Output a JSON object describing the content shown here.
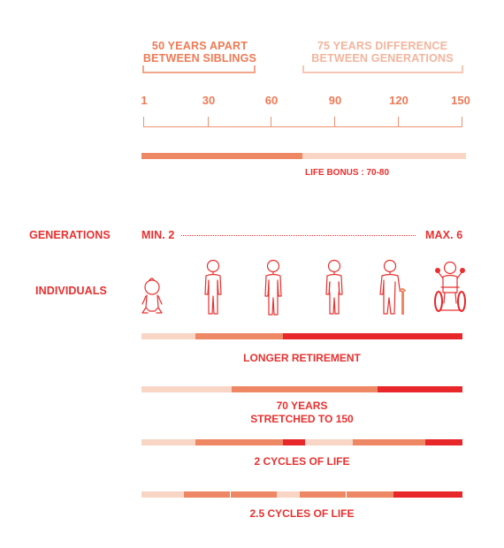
{
  "header": {
    "siblings_line1": "50 YEARS APART",
    "siblings_line2": "BETWEEN SIBLINGS",
    "generations_line1": "75 YEARS DIFFERENCE",
    "generations_line2": "BETWEEN GENERATIONS"
  },
  "timeline": {
    "ticks": [
      "1",
      "30",
      "60",
      "90",
      "120",
      "150"
    ],
    "life_bonus": "LIFE BONUS : 70-80"
  },
  "rows": {
    "generations_label": "GENERATIONS",
    "generations_min": "MIN. 2",
    "generations_max": "MAX. 6",
    "individuals_label": "INDIVIDUALS"
  },
  "icons": [
    "baby-icon",
    "child-icon",
    "adult-icon",
    "middle-aged-icon",
    "elder-with-cane-icon",
    "wheelchair-elder-icon"
  ],
  "scenarios": [
    {
      "caption": "LONGER RETIREMENT"
    },
    {
      "caption_line1": "70 YEARS",
      "caption_line2": "STRETCHED TO 150"
    },
    {
      "caption": "2 CYCLES OF LIFE"
    },
    {
      "caption": "2.5 CYCLES OF LIFE"
    }
  ],
  "colors": {
    "light": "#f9d5c6",
    "medium": "#ee8763",
    "strong": "#e8272b",
    "accent": "#ee7a55"
  }
}
